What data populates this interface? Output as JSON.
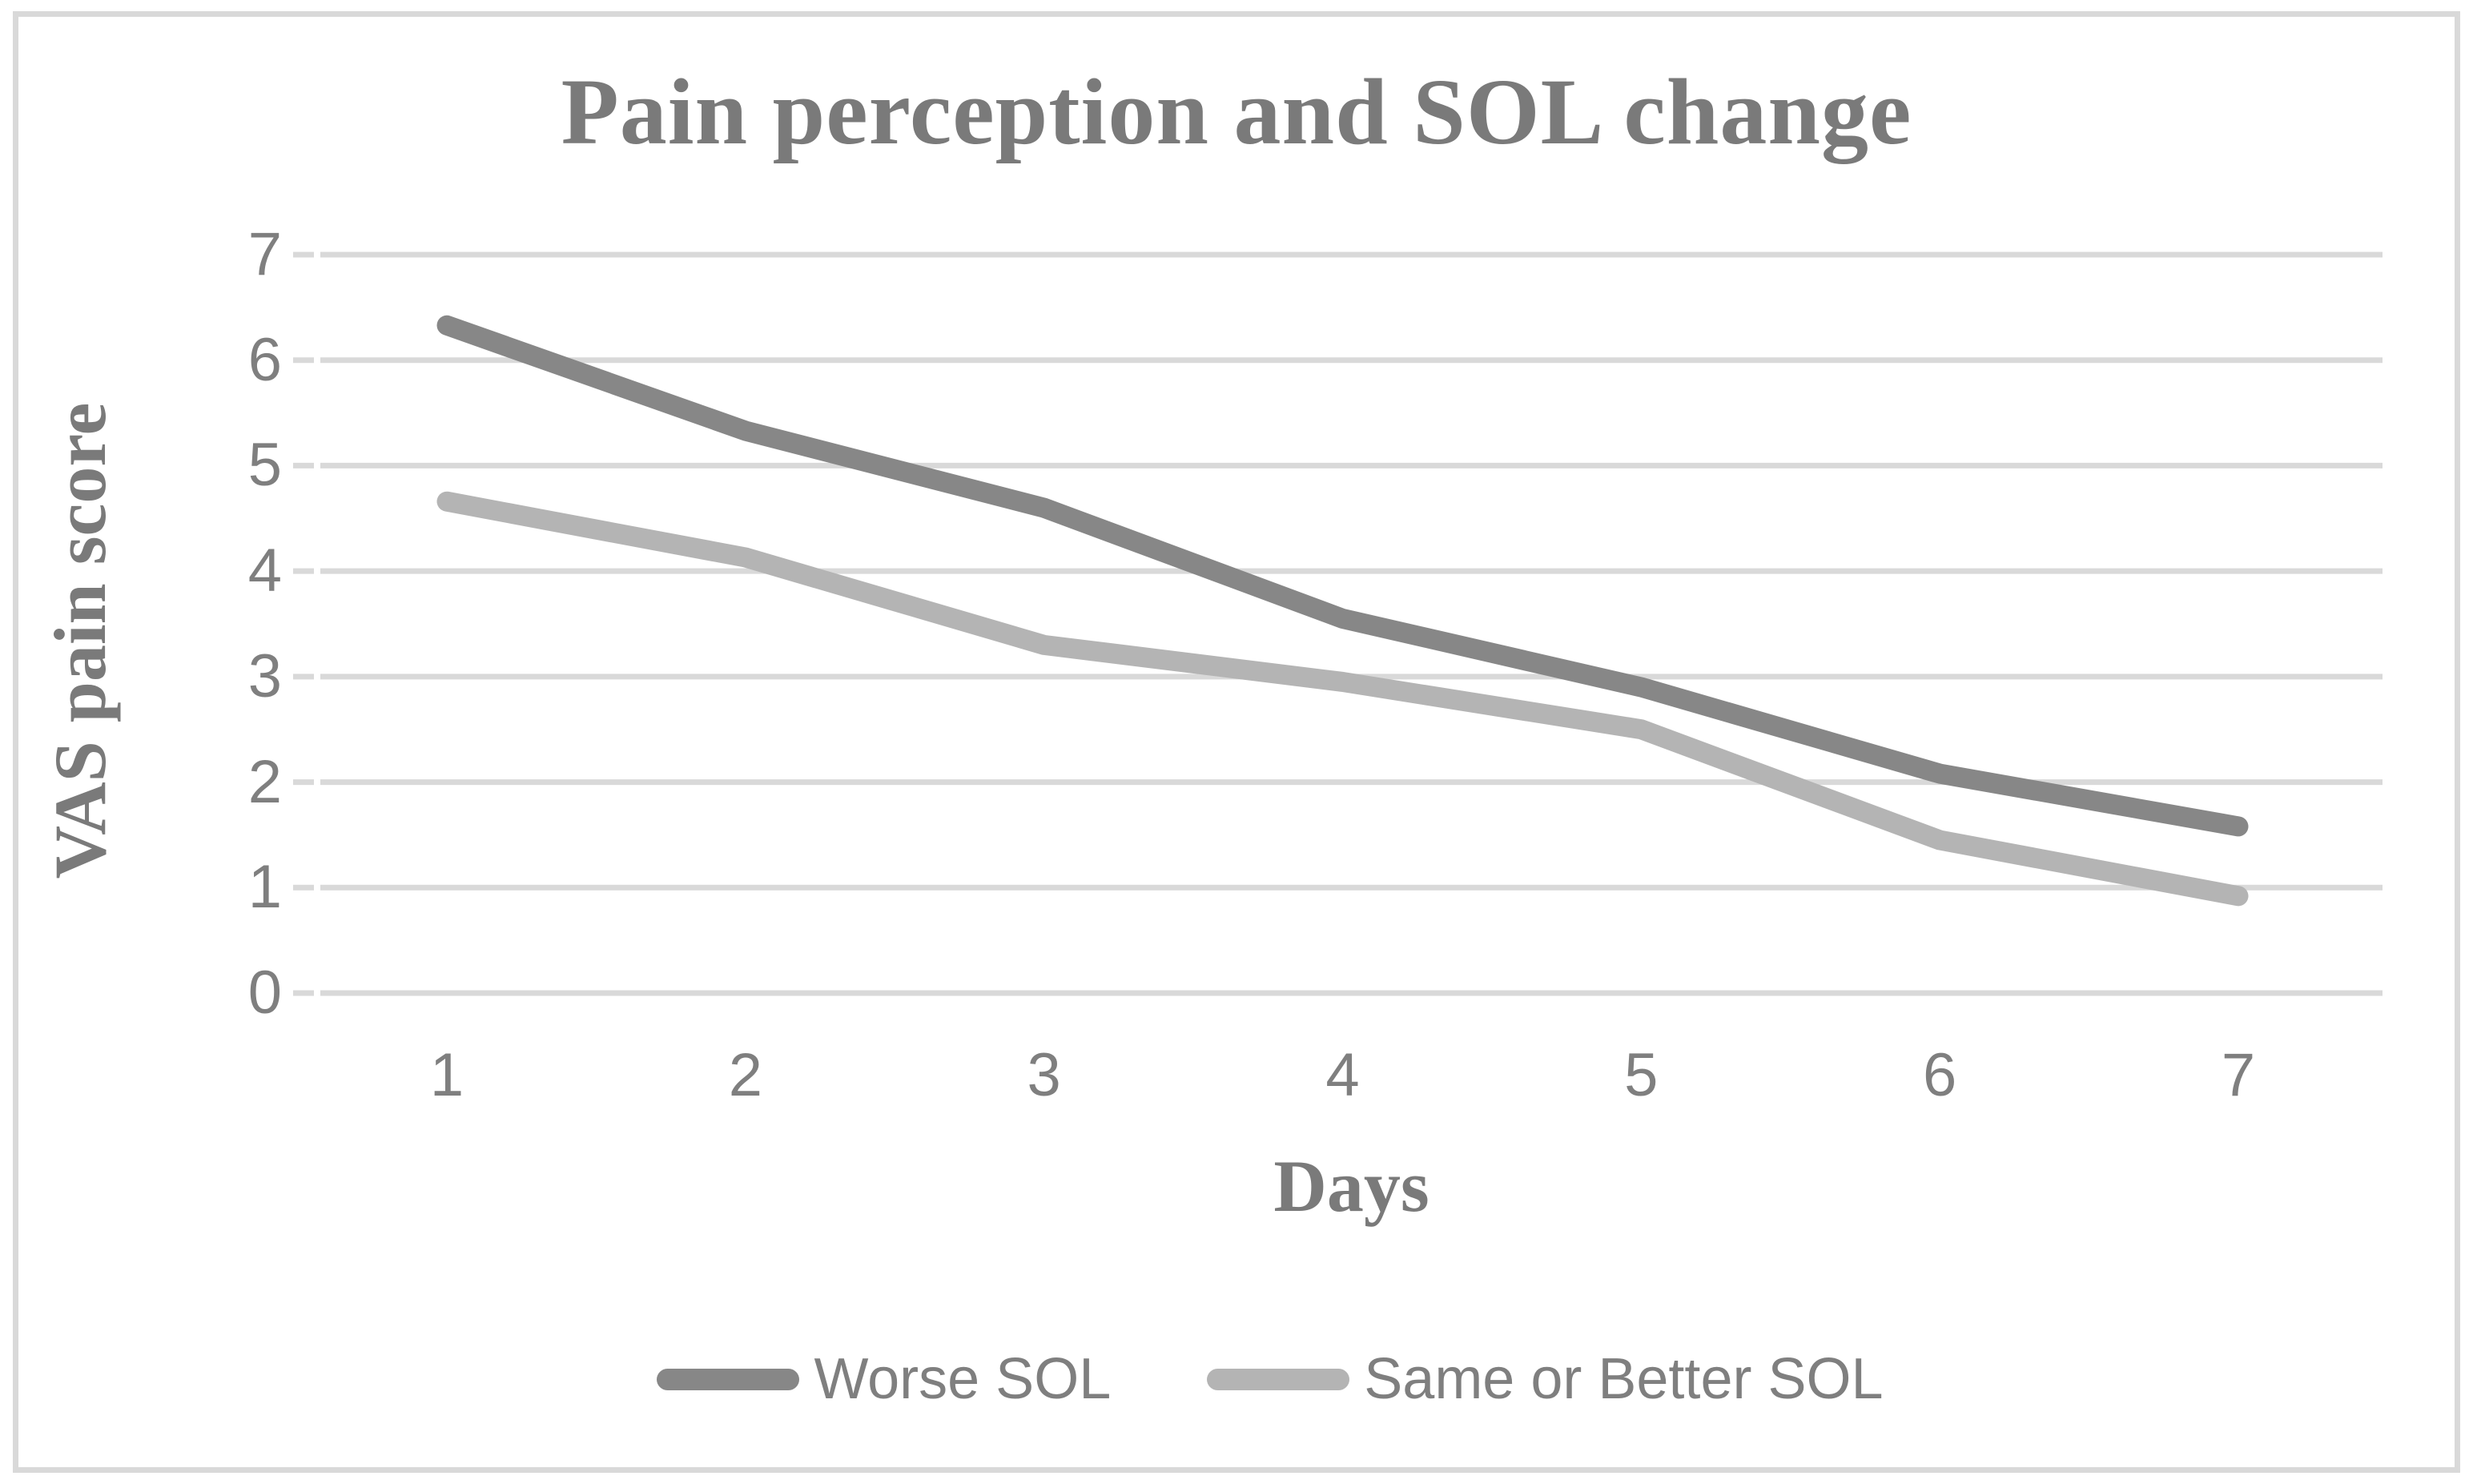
{
  "figure": {
    "title": "Pain perception and SOL change",
    "x_axis_title": "Days",
    "y_axis_title": "VAS pain score"
  },
  "chart_data": {
    "type": "line",
    "title": "Pain perception and SOL change",
    "xlabel": "Days",
    "ylabel": "VAS pain score",
    "categories": [
      "1",
      "2",
      "3",
      "4",
      "5",
      "6",
      "7"
    ],
    "y_ticks": [
      0,
      1,
      2,
      3,
      4,
      5,
      6,
      7
    ],
    "ylim": [
      0,
      7
    ],
    "grid": "horizontal-only",
    "legend_position": "bottom-center",
    "series": [
      {
        "name": "Worse SOL",
        "color": "#878787",
        "values": [
          6.33,
          5.33,
          4.6,
          3.55,
          2.9,
          2.08,
          1.58
        ]
      },
      {
        "name": "Same or Better SOL",
        "color": "#b4b4b4",
        "values": [
          4.66,
          4.13,
          3.3,
          2.95,
          2.5,
          1.45,
          0.92
        ]
      }
    ],
    "colors": {
      "gridline": "#d9d9d9",
      "tick_mark": "#d9d9d9",
      "frame_border": "#d9d9d9",
      "text": "#7f7f7f",
      "background": "#ffffff"
    }
  }
}
